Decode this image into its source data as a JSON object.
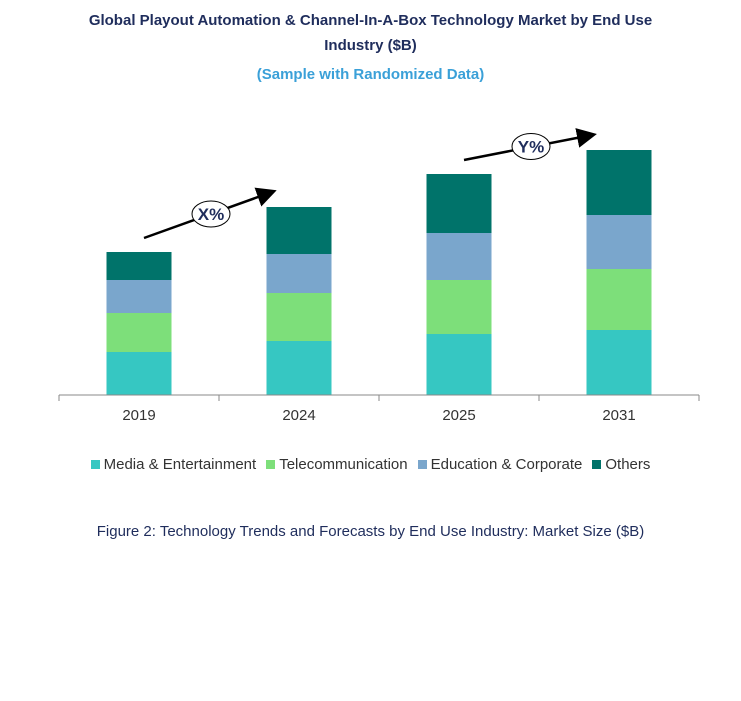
{
  "header": {
    "title_line1": "Global Playout Automation & Channel-In-A-Box Technology Market by End Use",
    "title_line2": "Industry ($B)",
    "subtitle": "(Sample with Randomized Data)"
  },
  "caption": "Figure 2: Technology  Trends  and Forecasts by End Use Industry:  Market Size ($B)",
  "chart_data": {
    "type": "bar",
    "stacked": true,
    "categories": [
      "2019",
      "2024",
      "2025",
      "2031"
    ],
    "series": [
      {
        "name": "Media & Entertainment",
        "color": "#36c7c2",
        "values": [
          43,
          54,
          61,
          65
        ]
      },
      {
        "name": "Telecommunication",
        "color": "#7ddf7a",
        "values": [
          39,
          48,
          54,
          61
        ]
      },
      {
        "name": "Education & Corporate",
        "color": "#7aa6cc",
        "values": [
          33,
          39,
          47,
          54
        ]
      },
      {
        "name": "Others",
        "color": "#00736a",
        "values": [
          28,
          47,
          59,
          65
        ]
      }
    ],
    "ylim": [
      0,
      260
    ],
    "annotations": [
      {
        "label": "X%",
        "from": "2019",
        "to": "2024"
      },
      {
        "label": "Y%",
        "from": "2025",
        "to": "2031"
      }
    ]
  }
}
